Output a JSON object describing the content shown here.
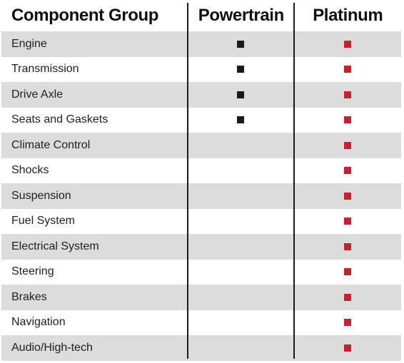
{
  "table": {
    "headers": {
      "component_group": "Component Group",
      "powertrain": "Powertrain",
      "platinum": "Platinum"
    },
    "rows": [
      {
        "component": "Engine",
        "powertrain": true,
        "platinum": true
      },
      {
        "component": "Transmission",
        "powertrain": true,
        "platinum": true
      },
      {
        "component": "Drive Axle",
        "powertrain": true,
        "platinum": true
      },
      {
        "component": "Seats and Gaskets",
        "powertrain": true,
        "platinum": true
      },
      {
        "component": "Climate Control",
        "powertrain": false,
        "platinum": true
      },
      {
        "component": "Shocks",
        "powertrain": false,
        "platinum": true
      },
      {
        "component": "Suspension",
        "powertrain": false,
        "platinum": true
      },
      {
        "component": "Fuel System",
        "powertrain": false,
        "platinum": true
      },
      {
        "component": "Electrical System",
        "powertrain": false,
        "platinum": true
      },
      {
        "component": "Steering",
        "powertrain": false,
        "platinum": true
      },
      {
        "component": "Brakes",
        "powertrain": false,
        "platinum": true
      },
      {
        "component": "Navigation",
        "powertrain": false,
        "platinum": true
      },
      {
        "component": "Audio/High-tech",
        "powertrain": false,
        "platinum": true
      }
    ]
  },
  "colors": {
    "powertrain_marker": "#1a1a1a",
    "platinum_marker": "#c8202f",
    "shaded_row": "#dcdcdc",
    "divider": "#1a1a1a"
  },
  "icons": {
    "powertrain_marker": "black-square-icon",
    "platinum_marker": "red-square-icon"
  }
}
